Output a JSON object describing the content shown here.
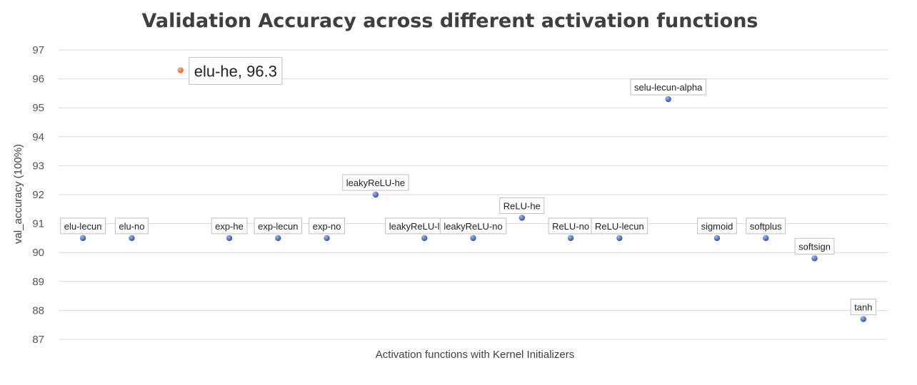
{
  "chart_data": {
    "type": "scatter",
    "title": "Validation Accuracy across different activation functions",
    "xlabel": "Activation functions with Kernel Initializers",
    "ylabel": "val_accuracy (100%)",
    "ylim": [
      87,
      97
    ],
    "yticks": [
      87,
      88,
      89,
      90,
      91,
      92,
      93,
      94,
      95,
      96,
      97
    ],
    "grid": true,
    "legend": "none",
    "colors": {
      "default": "#2f55a4",
      "highlight": "#e8652e"
    },
    "points": [
      {
        "label": "elu-lecun",
        "y": 90.5
      },
      {
        "label": "elu-no",
        "y": 90.5
      },
      {
        "label": "elu-he, 96.3",
        "y": 96.3,
        "highlight": true
      },
      {
        "label": "exp-he",
        "y": 90.5
      },
      {
        "label": "exp-lecun",
        "y": 90.5
      },
      {
        "label": "exp-no",
        "y": 90.5
      },
      {
        "label": "leakyReLU-he",
        "y": 92.0
      },
      {
        "label": "leakyReLU-lecun",
        "y": 90.5
      },
      {
        "label": "leakyReLU-no",
        "y": 90.5
      },
      {
        "label": "ReLU-he",
        "y": 91.2
      },
      {
        "label": "ReLU-no",
        "y": 90.5
      },
      {
        "label": "ReLU-lecun",
        "y": 90.5
      },
      {
        "label": "selu-lecun-alpha",
        "y": 95.3
      },
      {
        "label": "sigmoid",
        "y": 90.5
      },
      {
        "label": "softplus",
        "y": 90.5
      },
      {
        "label": "softsign",
        "y": 89.8
      },
      {
        "label": "tanh",
        "y": 87.7
      }
    ]
  }
}
